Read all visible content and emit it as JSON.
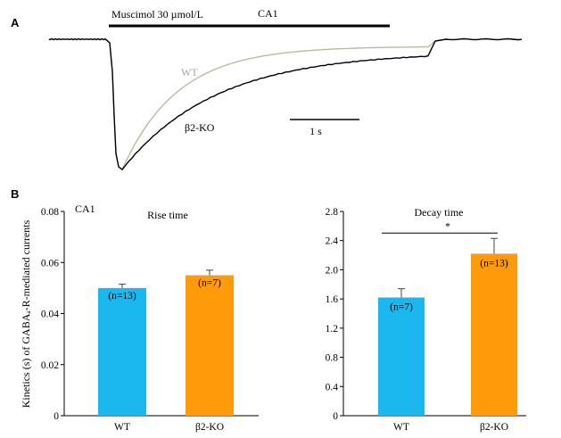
{
  "panel_a": {
    "letter": "A",
    "drug_label": "Muscimol 30 µmol/L",
    "region_label": "CA1",
    "wt_label": "WT",
    "ko_label": "β2-KO",
    "scale_label": "1 s",
    "colors": {
      "wt": "#bdb9a0",
      "ko": "#000000"
    }
  },
  "panel_b": {
    "letter": "B",
    "region_label": "CA1",
    "ylabel": "Kinetics (s) of GABAₐ-R-mediated currents"
  },
  "chart_data": [
    {
      "type": "bar",
      "title": "Rise time",
      "categories": [
        "WT",
        "β2-KO"
      ],
      "values": [
        0.05,
        0.055
      ],
      "errors": [
        0.0015,
        0.002
      ],
      "n_labels": [
        "(n=13)",
        "(n=7)"
      ],
      "ylim": [
        0,
        0.08
      ],
      "yticks": [
        "0",
        "0.02",
        "0.04",
        "0.06",
        "0.08"
      ],
      "colors": [
        "#1ab8ef",
        "#ff9a0a"
      ],
      "xlabel": "",
      "ylabel": ""
    },
    {
      "type": "bar",
      "title": "Decay time",
      "categories": [
        "WT",
        "β2-KO"
      ],
      "values": [
        1.62,
        2.22
      ],
      "errors": [
        0.12,
        0.21
      ],
      "n_labels": [
        "(n=7)",
        "(n=13)"
      ],
      "significance": "*",
      "ylim": [
        0,
        2.8
      ],
      "yticks": [
        "0",
        "0.4",
        "0.8",
        "1.2",
        "1.6",
        "2.0",
        "2.4",
        "2.8"
      ],
      "colors": [
        "#1ab8ef",
        "#ff9a0a"
      ],
      "xlabel": "",
      "ylabel": ""
    }
  ]
}
